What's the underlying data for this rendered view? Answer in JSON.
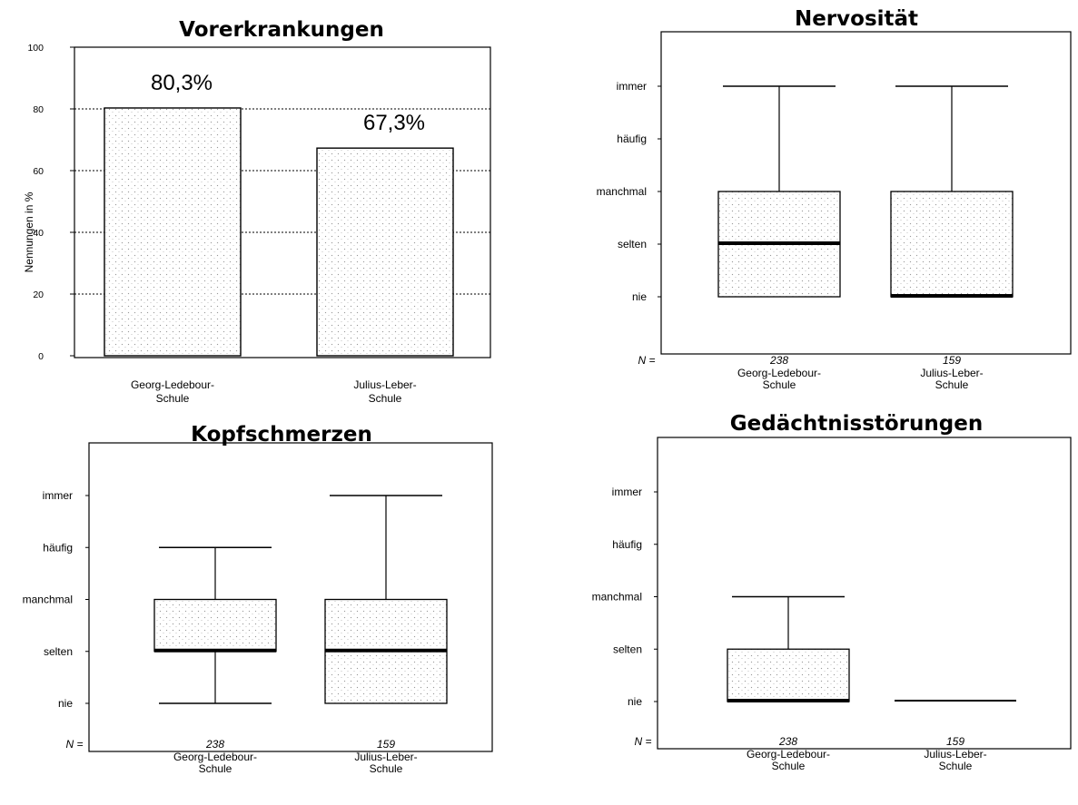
{
  "chart_data": [
    {
      "type": "bar",
      "title": "Vorerkrankungen",
      "xlabel": "",
      "ylabel": "Nennungen in %",
      "ylim": [
        0,
        100
      ],
      "yticks": [
        "0",
        "20",
        "40",
        "60",
        "80",
        "100"
      ],
      "grid": true,
      "categories": [
        "Georg-Ledebour-\nSchule",
        "Julius-Leber-\nSchule"
      ],
      "values": [
        80.3,
        67.3
      ],
      "value_labels": [
        "80,3%",
        "67,3%"
      ]
    },
    {
      "type": "box",
      "title": "Nervosität",
      "n_label": "N =",
      "levels": [
        "nie",
        "selten",
        "manchmal",
        "häufig",
        "immer"
      ],
      "categories": [
        "Georg-Ledebour-\nSchule",
        "Julius-Leber-\nSchule"
      ],
      "n": [
        "238",
        "159"
      ],
      "series": [
        {
          "whisker_low": 1,
          "q1": 1,
          "median": 2,
          "q3": 3,
          "whisker_high": 5
        },
        {
          "whisker_low": 1,
          "q1": 1,
          "median": 1,
          "q3": 3,
          "whisker_high": 5
        }
      ]
    },
    {
      "type": "box",
      "title": "Kopfschmerzen",
      "n_label": "N =",
      "levels": [
        "nie",
        "selten",
        "manchmal",
        "häufig",
        "immer"
      ],
      "categories": [
        "Georg-Ledebour-\nSchule",
        "Julius-Leber-\nSchule"
      ],
      "n": [
        "238",
        "159"
      ],
      "series": [
        {
          "whisker_low": 1,
          "q1": 2,
          "median": 2,
          "q3": 3,
          "whisker_high": 4
        },
        {
          "whisker_low": 1,
          "q1": 1,
          "median": 2,
          "q3": 3,
          "whisker_high": 5
        }
      ]
    },
    {
      "type": "box",
      "title": "Gedächtnisstörungen",
      "n_label": "N =",
      "levels": [
        "nie",
        "selten",
        "manchmal",
        "häufig",
        "immer"
      ],
      "categories": [
        "Georg-Ledebour-\nSchule",
        "Julius-Leber-\nSchule"
      ],
      "n": [
        "238",
        "159"
      ],
      "series": [
        {
          "whisker_low": 1,
          "q1": 1,
          "median": 1,
          "q3": 2,
          "whisker_high": 3
        },
        {
          "whisker_low": 1,
          "q1": 1,
          "median": 1,
          "q3": 1,
          "whisker_high": 1
        }
      ]
    }
  ]
}
